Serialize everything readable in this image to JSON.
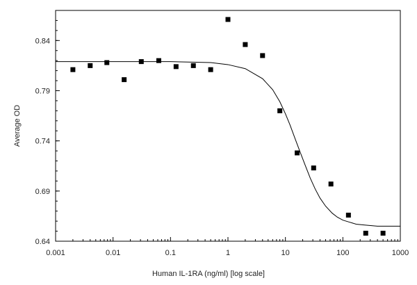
{
  "chart_data": {
    "type": "scatter",
    "title": "",
    "xlabel": "Human IL-1RA (ng/ml) [log scale]",
    "ylabel": "Average OD",
    "x_scale": "log",
    "xlim": [
      0.001,
      1000
    ],
    "ylim": [
      0.64,
      0.87
    ],
    "x_ticks": [
      0.001,
      0.01,
      0.1,
      1,
      10,
      100,
      1000
    ],
    "x_tick_labels": [
      "0.001",
      "0.01",
      "0.1",
      "1",
      "10",
      "100",
      "1000"
    ],
    "y_ticks": [
      0.64,
      0.69,
      0.74,
      0.79,
      0.84
    ],
    "y_tick_labels": [
      "0.64",
      "0.69",
      "0.74",
      "0.79",
      "0.84"
    ],
    "grid": false,
    "legend": "none",
    "series": [
      {
        "marker": "square",
        "x": [
          0.002,
          0.004,
          0.0078,
          0.0156,
          0.031,
          0.0625,
          0.125,
          0.25,
          0.5,
          1,
          2,
          4,
          8,
          16,
          31,
          62,
          125,
          250,
          500
        ],
        "y": [
          0.811,
          0.815,
          0.818,
          0.801,
          0.819,
          0.82,
          0.814,
          0.815,
          0.811,
          0.861,
          0.836,
          0.825,
          0.77,
          0.728,
          0.713,
          0.697,
          0.666,
          0.648,
          0.648
        ]
      },
      {
        "type": "line",
        "fit": "4PL",
        "x": [
          0.001,
          0.1,
          0.5,
          1,
          2,
          4,
          6,
          8,
          10,
          12,
          15,
          18,
          22,
          27,
          33,
          40,
          50,
          65,
          80,
          100,
          130,
          170,
          250,
          400,
          1000
        ],
        "y": [
          0.819,
          0.819,
          0.818,
          0.816,
          0.812,
          0.802,
          0.791,
          0.779,
          0.767,
          0.756,
          0.741,
          0.729,
          0.716,
          0.703,
          0.692,
          0.683,
          0.675,
          0.668,
          0.664,
          0.661,
          0.659,
          0.657,
          0.656,
          0.655,
          0.655
        ]
      }
    ]
  }
}
